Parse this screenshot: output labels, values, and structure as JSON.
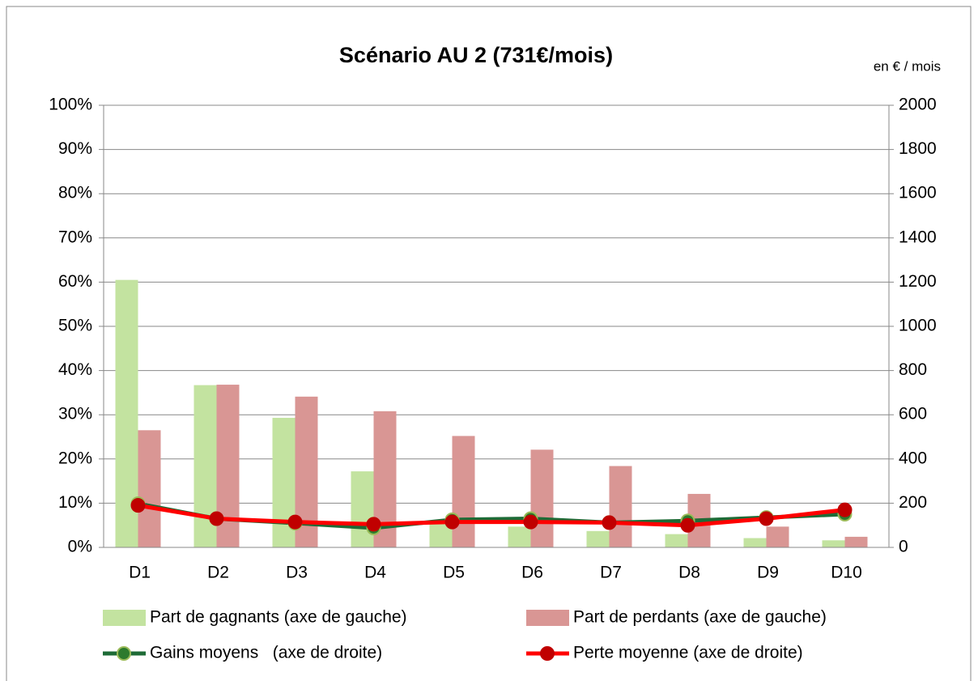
{
  "chart_data": {
    "type": "bar_line",
    "title": "Scénario AU 2 (731€/mois)",
    "annotation": "en € / mois",
    "categories": [
      "D1",
      "D2",
      "D3",
      "D4",
      "D5",
      "D6",
      "D7",
      "D8",
      "D9",
      "D10"
    ],
    "series": [
      {
        "name": "Part de gagnants (axe de gauche)",
        "type": "bar",
        "color": "#c3e3a0",
        "values": [
          60.5,
          36.7,
          29.3,
          17.2,
          5.7,
          4.7,
          3.7,
          3.0,
          2.1,
          1.6
        ]
      },
      {
        "name": "Part de perdants (axe de gauche)",
        "type": "bar",
        "color": "#d99694",
        "values": [
          26.5,
          36.8,
          34.1,
          30.8,
          25.2,
          22.1,
          18.4,
          12.1,
          4.7,
          2.4
        ]
      },
      {
        "name": "Gains moyens   (axe de droite)",
        "type": "line",
        "axis": "y2",
        "color": "#1e6b36",
        "marker_color": "#2d7a2d",
        "values": [
          198,
          130,
          110,
          88,
          125,
          130,
          112,
          120,
          135,
          150
        ]
      },
      {
        "name": "Perte moyenne (axe de droite)",
        "type": "line",
        "axis": "y2",
        "color": "#ff0000",
        "marker_color": "#c00000",
        "values": [
          190,
          130,
          115,
          105,
          115,
          115,
          112,
          100,
          130,
          170
        ]
      }
    ],
    "ylim": [
      0,
      100
    ],
    "yticks": [
      {
        "value": 0,
        "label": "0%"
      },
      {
        "value": 10,
        "label": "10%"
      },
      {
        "value": 20,
        "label": "20%"
      },
      {
        "value": 30,
        "label": "30%"
      },
      {
        "value": 40,
        "label": "40%"
      },
      {
        "value": 50,
        "label": "50%"
      },
      {
        "value": 60,
        "label": "60%"
      },
      {
        "value": 70,
        "label": "70%"
      },
      {
        "value": 80,
        "label": "80%"
      },
      {
        "value": 90,
        "label": "90%"
      },
      {
        "value": 100,
        "label": "100%"
      }
    ],
    "y2lim": [
      0,
      2000
    ],
    "y2ticks": [
      0,
      200,
      400,
      600,
      800,
      1000,
      1200,
      1400,
      1600,
      1800,
      2000
    ],
    "grid": true
  }
}
